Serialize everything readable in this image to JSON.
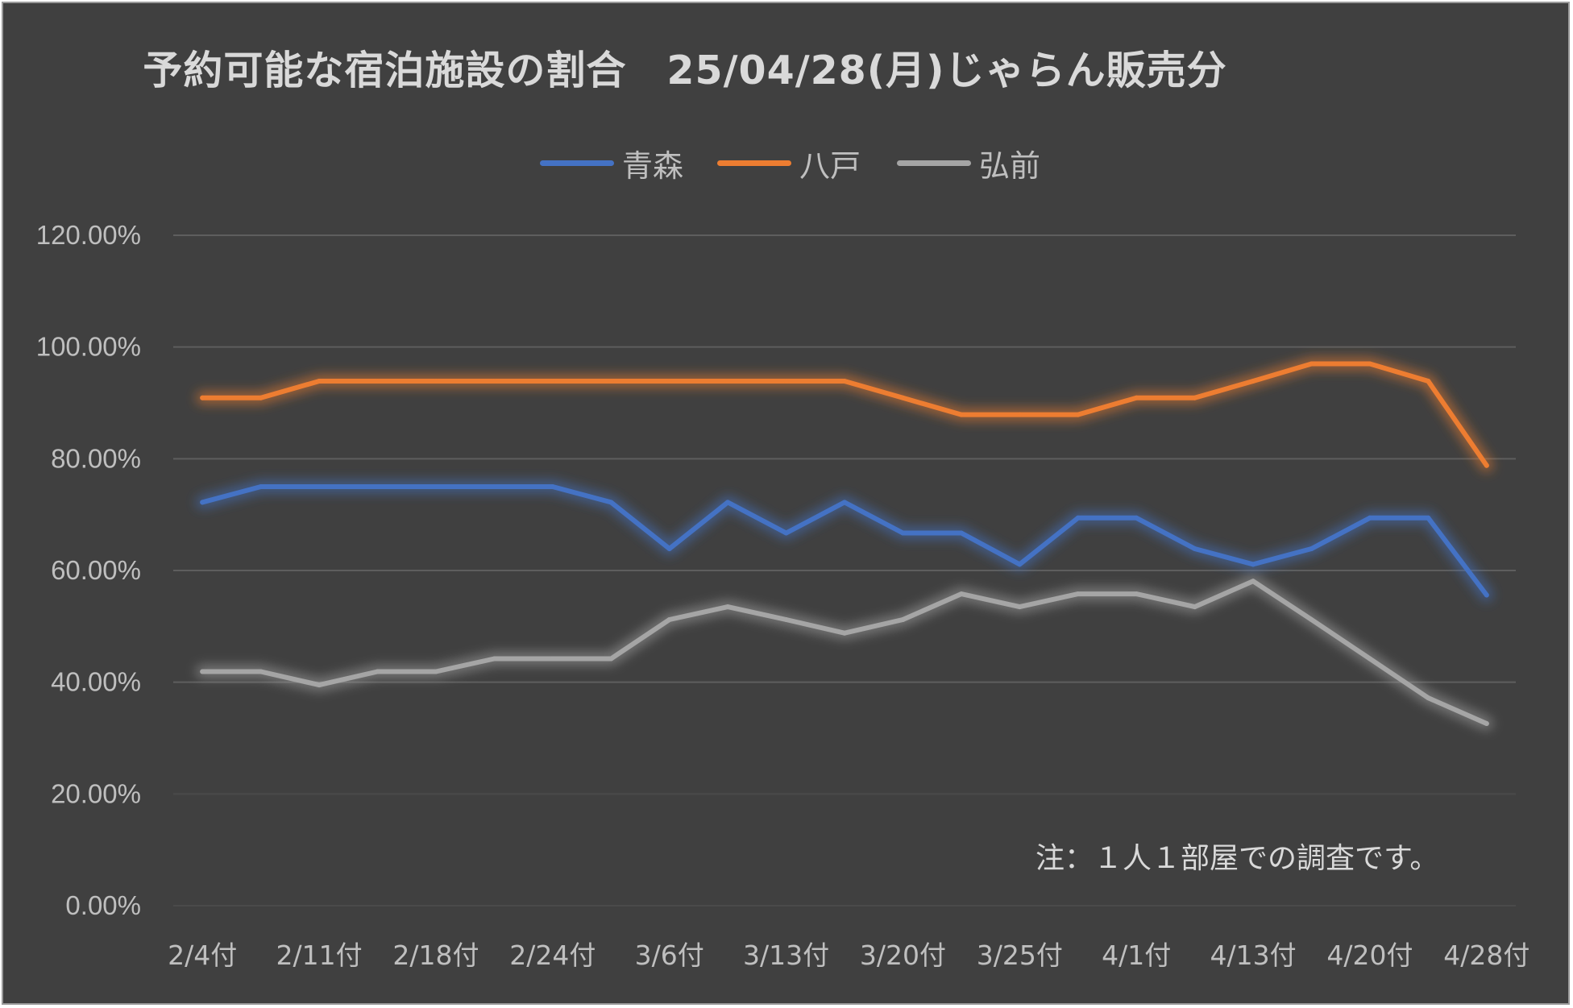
{
  "chart_data": {
    "type": "line",
    "title": "予約可能な宿泊施設の割合　25/04/28(月)じゃらん販売分",
    "xlabel": "",
    "ylabel": "",
    "ylim": [
      0,
      1.2
    ],
    "y_ticks": [
      0,
      0.2,
      0.4,
      0.6,
      0.8,
      1.0,
      1.2
    ],
    "y_tick_labels": [
      "0.00%",
      "20.00%",
      "40.00%",
      "60.00%",
      "80.00%",
      "100.00%",
      "120.00%"
    ],
    "x_tick_labels": [
      "2/4付",
      "2/11付",
      "2/18付",
      "2/24付",
      "3/6付",
      "3/13付",
      "3/20付",
      "3/25付",
      "4/1付",
      "4/13付",
      "4/20付",
      "4/28付"
    ],
    "x_tick_label_indices": [
      0,
      2,
      4,
      6,
      8,
      10,
      12,
      14,
      16,
      18,
      20,
      22
    ],
    "point_count": 23,
    "grid": true,
    "legend_position": "top",
    "series": [
      {
        "name": "青森",
        "color": "#4472c4",
        "values": [
          0.722,
          0.75,
          0.75,
          0.75,
          0.75,
          0.75,
          0.75,
          0.722,
          0.639,
          0.722,
          0.667,
          0.722,
          0.667,
          0.667,
          0.611,
          0.694,
          0.694,
          0.639,
          0.611,
          0.639,
          0.694,
          0.694,
          0.556
        ]
      },
      {
        "name": "八戸",
        "color": "#ed7d31",
        "values": [
          0.909,
          0.909,
          0.939,
          0.939,
          0.939,
          0.939,
          0.939,
          0.939,
          0.939,
          0.939,
          0.939,
          0.939,
          0.909,
          0.879,
          0.879,
          0.879,
          0.909,
          0.909,
          0.939,
          0.97,
          0.97,
          0.939,
          0.788
        ]
      },
      {
        "name": "弘前",
        "color": "#a5a5a5",
        "values": [
          0.419,
          0.419,
          0.395,
          0.419,
          0.419,
          0.442,
          0.442,
          0.442,
          0.512,
          0.535,
          0.512,
          0.488,
          0.512,
          0.558,
          0.535,
          0.558,
          0.558,
          0.535,
          0.581,
          0.512,
          0.442,
          0.372,
          0.326
        ]
      }
    ]
  },
  "note": "注：１人１部屋での調査です。"
}
